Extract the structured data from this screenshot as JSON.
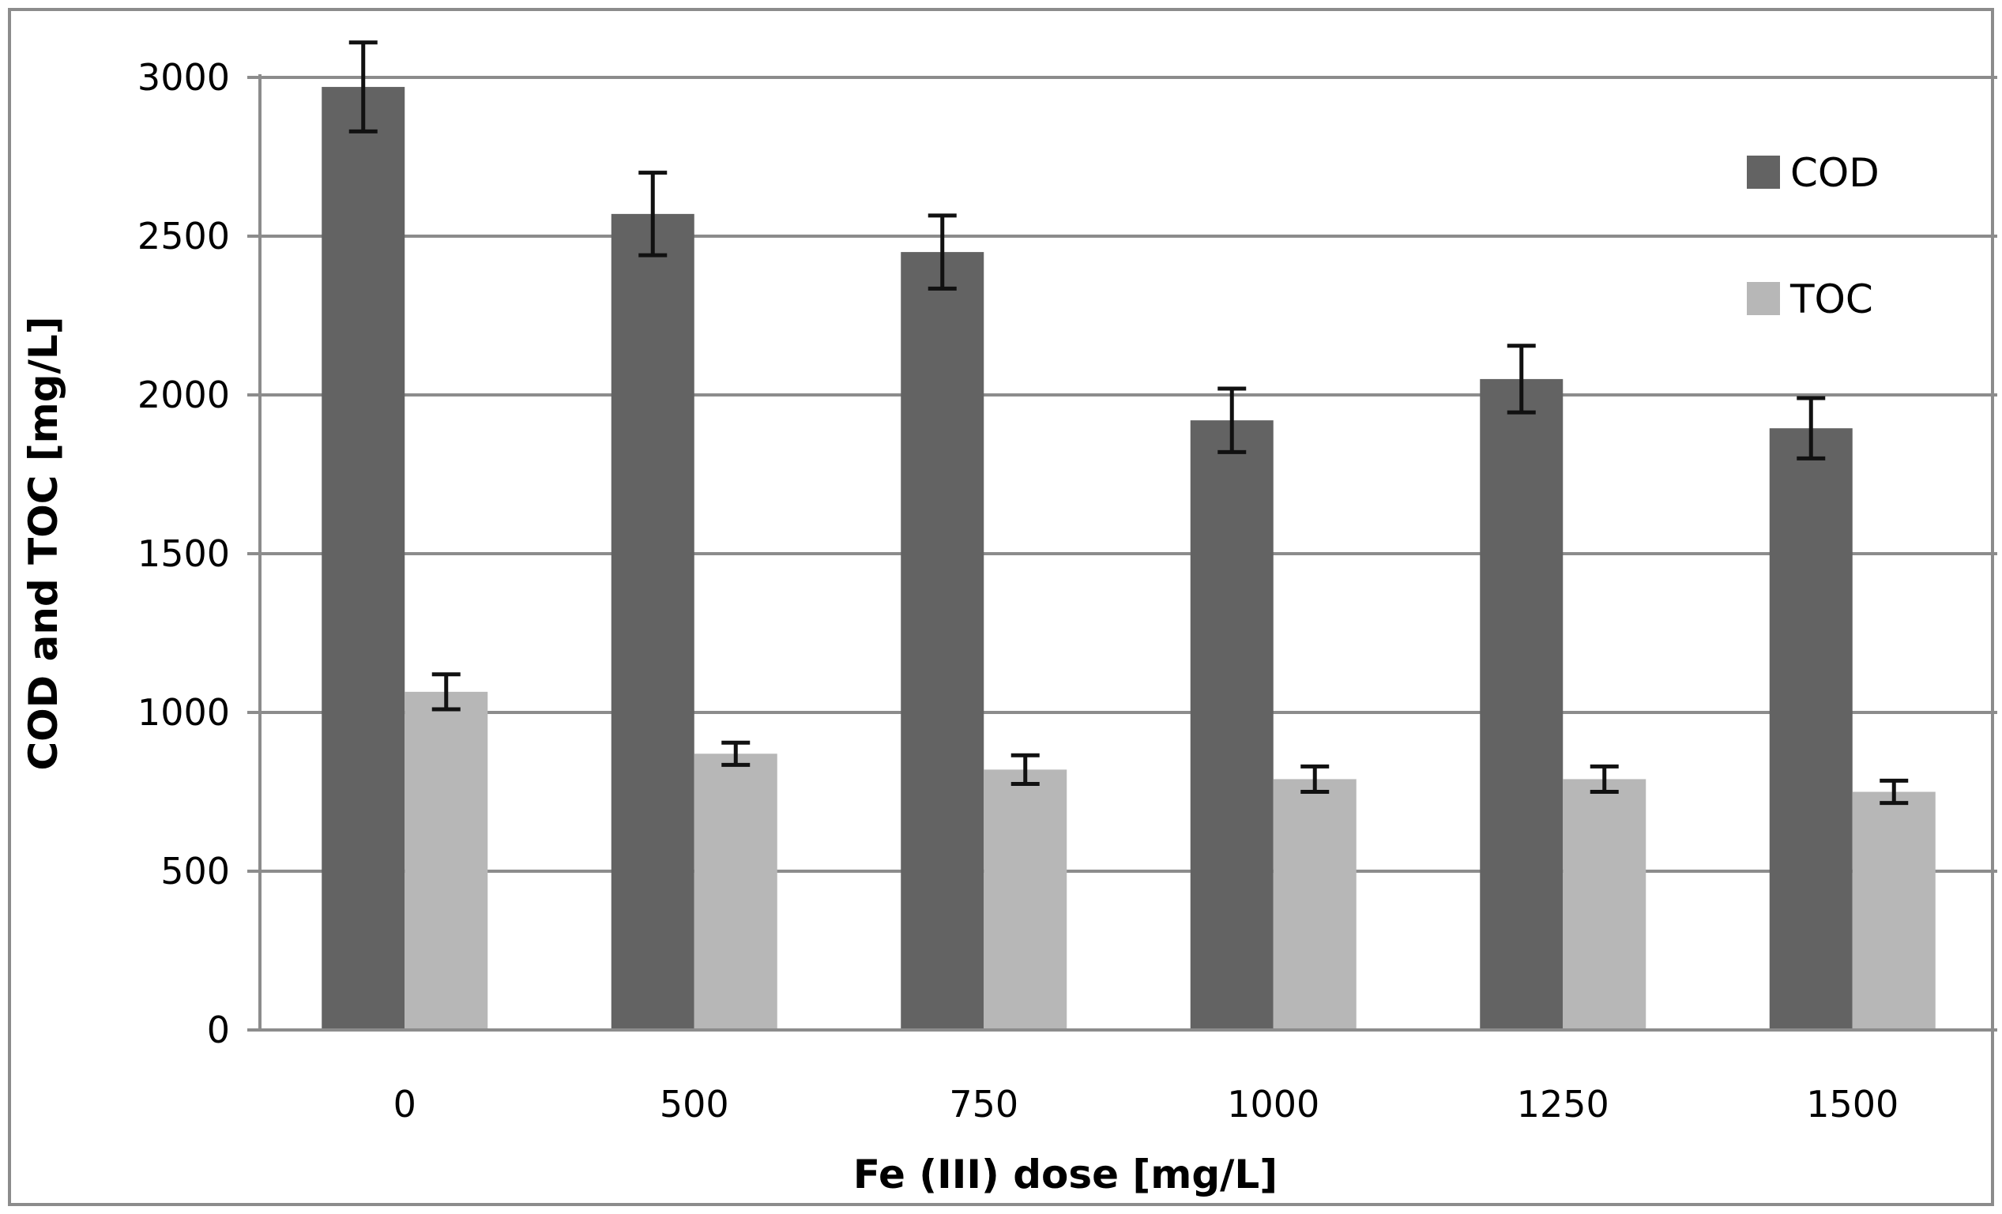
{
  "chart_data": {
    "type": "bar",
    "xlabel": "Fe (III) dose [mg/L]",
    "ylabel": "COD and TOC [mg/L]",
    "categories": [
      "0",
      "500",
      "750",
      "1000",
      "1250",
      "1500"
    ],
    "ylim": [
      0,
      3000
    ],
    "yticks": [
      0,
      500,
      1000,
      1500,
      2000,
      2500,
      3000
    ],
    "grid": true,
    "legend_position": "top-right",
    "series": [
      {
        "name": "COD",
        "color": "#636363",
        "values": [
          2970,
          2570,
          2450,
          1920,
          2050,
          1895
        ],
        "errors": [
          140,
          130,
          115,
          100,
          105,
          95
        ]
      },
      {
        "name": "TOC",
        "color": "#b7b7b7",
        "values": [
          1065,
          870,
          820,
          790,
          790,
          750
        ],
        "errors": [
          55,
          35,
          45,
          40,
          40,
          35
        ]
      }
    ]
  }
}
